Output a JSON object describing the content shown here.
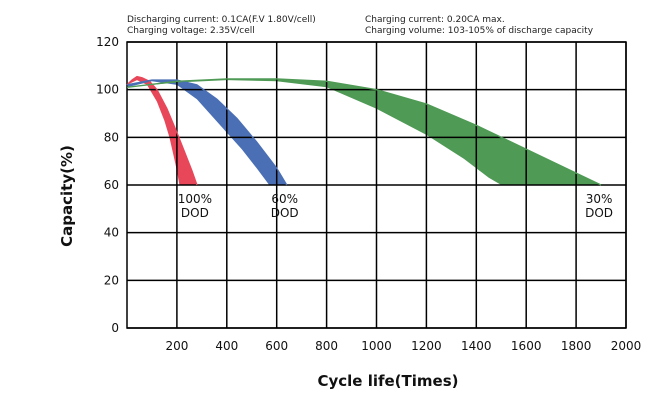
{
  "notes": {
    "left_line1": "Discharging current: 0.1CA(F.V 1.80V/cell)",
    "left_line2": "Charging voltage: 2.35V/cell",
    "right_line1": "Charging current: 0.20CA max.",
    "right_line2": "Charging volume: 103-105% of discharge capacity"
  },
  "chart_data": {
    "type": "area",
    "xlabel": "Cycle life(Times)",
    "ylabel": "Capacity(%)",
    "xlim": [
      0,
      2000
    ],
    "ylim": [
      0,
      120
    ],
    "xticks": [
      200,
      400,
      600,
      800,
      1000,
      1200,
      1400,
      1600,
      1800,
      2000
    ],
    "yticks": [
      0,
      20,
      40,
      60,
      80,
      100,
      120
    ],
    "grid": true,
    "series": [
      {
        "name": "100% DOD",
        "label_lines": [
          "100%",
          "DOD"
        ],
        "color": "#e8475a",
        "upper": [
          [
            0,
            102
          ],
          [
            20,
            104
          ],
          [
            40,
            105.5
          ],
          [
            60,
            105
          ],
          [
            90,
            103.5
          ],
          [
            120,
            100
          ],
          [
            160,
            92
          ],
          [
            200,
            82
          ],
          [
            230,
            74
          ],
          [
            260,
            66
          ],
          [
            280,
            60
          ]
        ],
        "lower": [
          [
            0,
            102
          ],
          [
            40,
            104
          ],
          [
            80,
            102
          ],
          [
            120,
            95
          ],
          [
            150,
            87
          ],
          [
            170,
            80
          ],
          [
            185,
            73
          ],
          [
            200,
            66
          ],
          [
            210,
            60
          ]
        ]
      },
      {
        "name": "60% DOD",
        "label_lines": [
          "60%",
          "DOD"
        ],
        "color": "#4a6fb5",
        "upper": [
          [
            0,
            102
          ],
          [
            100,
            104
          ],
          [
            200,
            104
          ],
          [
            280,
            102
          ],
          [
            360,
            96
          ],
          [
            440,
            88
          ],
          [
            520,
            78
          ],
          [
            600,
            67
          ],
          [
            640,
            60
          ]
        ],
        "lower": [
          [
            0,
            101
          ],
          [
            100,
            103.5
          ],
          [
            200,
            102
          ],
          [
            280,
            96
          ],
          [
            340,
            89
          ],
          [
            400,
            82
          ],
          [
            460,
            75
          ],
          [
            520,
            67
          ],
          [
            570,
            60
          ]
        ]
      },
      {
        "name": "30% DOD",
        "label_lines": [
          "30%",
          "DOD"
        ],
        "color": "#4f9a55",
        "upper": [
          [
            0,
            101
          ],
          [
            200,
            103.5
          ],
          [
            400,
            104.5
          ],
          [
            600,
            104.5
          ],
          [
            800,
            103.5
          ],
          [
            1000,
            100
          ],
          [
            1200,
            94
          ],
          [
            1400,
            85
          ],
          [
            1600,
            75
          ],
          [
            1800,
            65
          ],
          [
            1900,
            60
          ]
        ],
        "lower": [
          [
            0,
            101
          ],
          [
            200,
            103
          ],
          [
            400,
            104
          ],
          [
            600,
            103.5
          ],
          [
            800,
            101
          ],
          [
            1000,
            92
          ],
          [
            1200,
            81
          ],
          [
            1350,
            71
          ],
          [
            1450,
            63
          ],
          [
            1500,
            60
          ]
        ]
      }
    ]
  }
}
